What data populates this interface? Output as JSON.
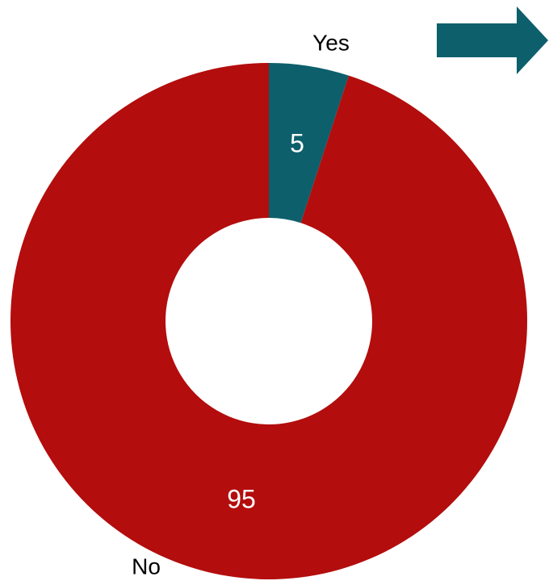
{
  "chart_data": {
    "type": "pie",
    "donut": true,
    "categories": [
      "Yes",
      "No"
    ],
    "values": [
      5,
      95
    ],
    "data_labels": [
      "5",
      "95"
    ],
    "colors": [
      "#0d5f6b",
      "#b30d0d"
    ],
    "title": "",
    "legend": "none"
  },
  "arrow_icon": {
    "name": "right-arrow-icon",
    "color": "#0d5f6b"
  }
}
